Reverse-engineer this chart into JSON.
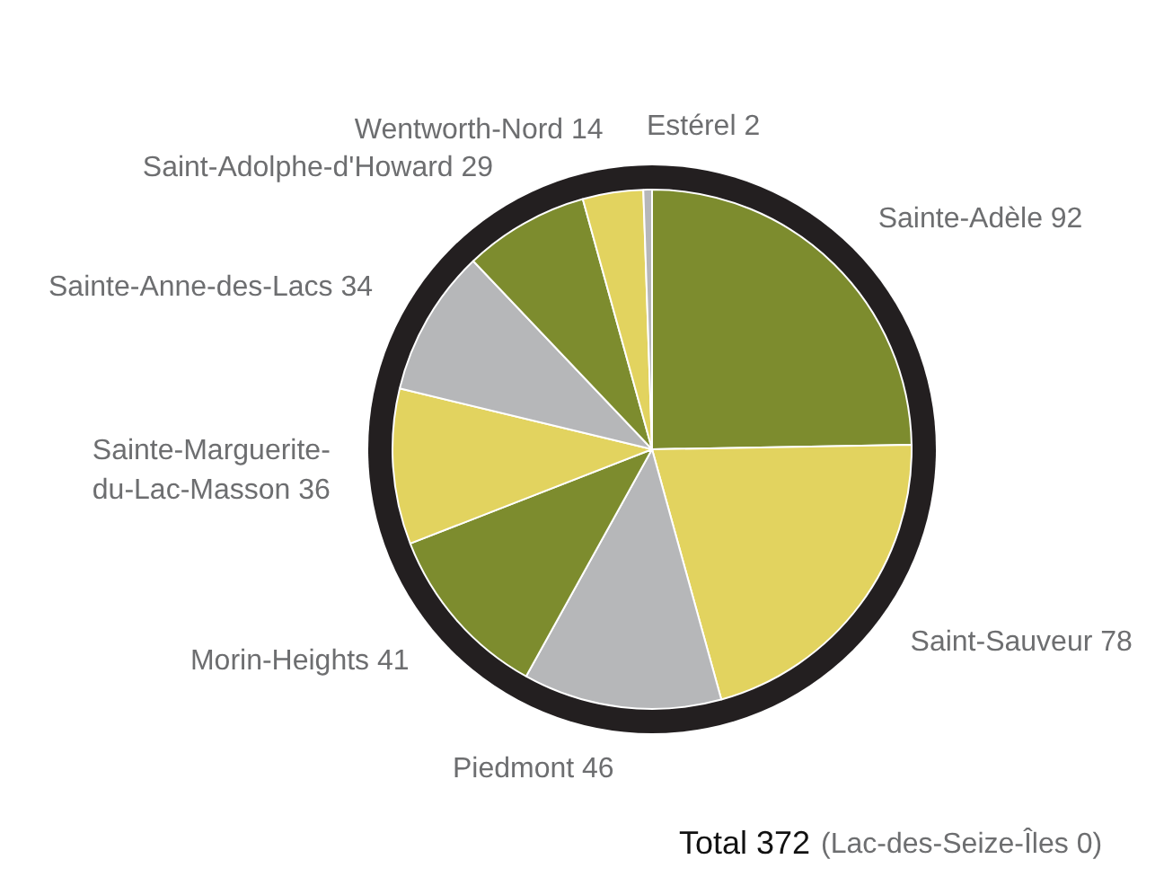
{
  "chart_data": {
    "type": "pie",
    "categories": [
      "Sainte-Adèle",
      "Saint-Sauveur",
      "Piedmont",
      "Morin-Heights",
      "Sainte-Marguerite-du-Lac-Masson",
      "Sainte-Anne-des-Lacs",
      "Saint-Adolphe-d'Howard",
      "Wentworth-Nord",
      "Estérel"
    ],
    "values": [
      92,
      78,
      46,
      41,
      36,
      34,
      29,
      14,
      2
    ],
    "colors": [
      "#7d8c2e",
      "#e2d35f",
      "#b6b7b9",
      "#7d8c2e",
      "#e2d35f",
      "#b6b7b9",
      "#7d8c2e",
      "#e2d35f",
      "#b6b7b9"
    ],
    "data_labels": true,
    "legend": false,
    "annotations": [
      "Total 372",
      "(Lac-des-Seize-Îles 0)"
    ]
  }
}
